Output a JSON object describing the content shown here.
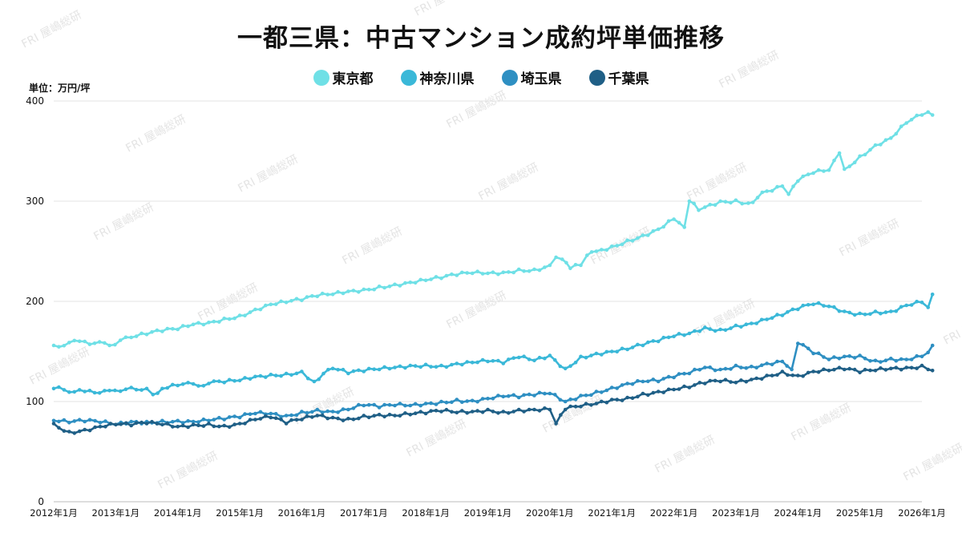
{
  "title": "一都三県：中古マンション成約坪単価推移",
  "unit_label": "単位：万円/坪",
  "watermark_text": "FRI 屋嶋総研",
  "chart_data": {
    "type": "line",
    "title": "一都三県：中古マンション成約坪単価推移",
    "xlabel": "",
    "ylabel": "単位：万円/坪",
    "ylim": [
      0,
      400
    ],
    "yticks": [
      0,
      100,
      200,
      300,
      400
    ],
    "xlim": [
      2012.0,
      2026.0
    ],
    "x_tick_labels": [
      "2012年1月",
      "2013年1月",
      "2014年1月",
      "2015年1月",
      "2016年1月",
      "2017年1月",
      "2018年1月",
      "2019年1月",
      "2020年1月",
      "2021年1月",
      "2022年1月",
      "2023年1月",
      "2024年1月",
      "2025年1月",
      "2026年1月"
    ],
    "grid": true,
    "legend_position": "top-center",
    "series": [
      {
        "name": "東京都",
        "color": "#6fe0e6",
        "points": [
          [
            2012.0,
            156
          ],
          [
            2012.5,
            160
          ],
          [
            2012.9,
            156
          ],
          [
            2013.25,
            164
          ],
          [
            2013.5,
            167
          ],
          [
            2013.75,
            170
          ],
          [
            2014.0,
            172
          ],
          [
            2014.25,
            177
          ],
          [
            2014.5,
            179
          ],
          [
            2014.75,
            183
          ],
          [
            2015.0,
            186
          ],
          [
            2015.25,
            192
          ],
          [
            2015.5,
            197
          ],
          [
            2015.75,
            199
          ],
          [
            2016.0,
            201
          ],
          [
            2016.25,
            205
          ],
          [
            2016.5,
            207
          ],
          [
            2016.75,
            210
          ],
          [
            2017.0,
            212
          ],
          [
            2017.25,
            215
          ],
          [
            2017.5,
            217
          ],
          [
            2017.75,
            219
          ],
          [
            2018.0,
            221
          ],
          [
            2018.25,
            223
          ],
          [
            2018.5,
            226
          ],
          [
            2018.75,
            228
          ],
          [
            2019.0,
            228
          ],
          [
            2019.25,
            229
          ],
          [
            2019.5,
            232
          ],
          [
            2019.75,
            232
          ],
          [
            2020.0,
            236
          ],
          [
            2020.1,
            244
          ],
          [
            2020.2,
            242
          ],
          [
            2020.33,
            233
          ],
          [
            2020.5,
            236
          ],
          [
            2020.6,
            246
          ],
          [
            2020.75,
            250
          ],
          [
            2021.0,
            255
          ],
          [
            2021.25,
            261
          ],
          [
            2021.5,
            266
          ],
          [
            2021.75,
            272
          ],
          [
            2022.0,
            282
          ],
          [
            2022.17,
            274
          ],
          [
            2022.25,
            300
          ],
          [
            2022.4,
            291
          ],
          [
            2022.5,
            294
          ],
          [
            2022.75,
            300
          ],
          [
            2023.0,
            301
          ],
          [
            2023.2,
            298
          ],
          [
            2023.5,
            310
          ],
          [
            2023.75,
            315
          ],
          [
            2023.85,
            307
          ],
          [
            2024.0,
            320
          ],
          [
            2024.25,
            328
          ],
          [
            2024.5,
            331
          ],
          [
            2024.67,
            348
          ],
          [
            2024.75,
            332
          ],
          [
            2025.0,
            345
          ],
          [
            2025.25,
            356
          ],
          [
            2025.5,
            363
          ],
          [
            2025.75,
            378
          ],
          [
            2026.0,
            386
          ],
          [
            2026.1,
            389
          ],
          [
            2026.17,
            386
          ]
        ]
      },
      {
        "name": "神奈川県",
        "color": "#3ab8d8",
        "points": [
          [
            2012.0,
            113
          ],
          [
            2012.5,
            110
          ],
          [
            2012.9,
            111
          ],
          [
            2013.25,
            114
          ],
          [
            2013.5,
            113
          ],
          [
            2013.6,
            107
          ],
          [
            2013.75,
            113
          ],
          [
            2014.0,
            116
          ],
          [
            2014.5,
            118
          ],
          [
            2014.75,
            119
          ],
          [
            2015.0,
            121
          ],
          [
            2015.25,
            125
          ],
          [
            2015.5,
            127
          ],
          [
            2015.75,
            128
          ],
          [
            2016.0,
            130
          ],
          [
            2016.2,
            120
          ],
          [
            2016.5,
            133
          ],
          [
            2016.75,
            128
          ],
          [
            2017.0,
            130
          ],
          [
            2017.25,
            132
          ],
          [
            2017.5,
            134
          ],
          [
            2017.75,
            136
          ],
          [
            2018.0,
            137
          ],
          [
            2018.25,
            136
          ],
          [
            2018.5,
            138
          ],
          [
            2018.75,
            139
          ],
          [
            2019.0,
            140
          ],
          [
            2019.25,
            138
          ],
          [
            2019.5,
            144
          ],
          [
            2019.75,
            141
          ],
          [
            2020.0,
            146
          ],
          [
            2020.25,
            133
          ],
          [
            2020.5,
            145
          ],
          [
            2020.75,
            148
          ],
          [
            2021.0,
            150
          ],
          [
            2021.25,
            152
          ],
          [
            2021.5,
            156
          ],
          [
            2021.75,
            160
          ],
          [
            2022.0,
            165
          ],
          [
            2022.25,
            168
          ],
          [
            2022.5,
            174
          ],
          [
            2022.75,
            172
          ],
          [
            2023.0,
            176
          ],
          [
            2023.25,
            178
          ],
          [
            2023.5,
            182
          ],
          [
            2023.75,
            186
          ],
          [
            2024.0,
            192
          ],
          [
            2024.25,
            197
          ],
          [
            2024.5,
            195
          ],
          [
            2024.75,
            190
          ],
          [
            2025.0,
            188
          ],
          [
            2025.25,
            190
          ],
          [
            2025.5,
            190
          ],
          [
            2025.75,
            196
          ],
          [
            2026.0,
            199
          ],
          [
            2026.1,
            194
          ],
          [
            2026.17,
            207
          ]
        ]
      },
      {
        "name": "埼玉県",
        "color": "#2e8fc2",
        "points": [
          [
            2012.0,
            81
          ],
          [
            2012.25,
            79
          ],
          [
            2012.5,
            80
          ],
          [
            2012.75,
            79
          ],
          [
            2013.0,
            77
          ],
          [
            2013.25,
            80
          ],
          [
            2013.5,
            80
          ],
          [
            2013.75,
            81
          ],
          [
            2014.0,
            81
          ],
          [
            2014.25,
            80
          ],
          [
            2014.5,
            81
          ],
          [
            2014.75,
            82
          ],
          [
            2015.0,
            84
          ],
          [
            2015.25,
            88
          ],
          [
            2015.5,
            88
          ],
          [
            2015.75,
            86
          ],
          [
            2016.0,
            90
          ],
          [
            2016.25,
            92
          ],
          [
            2016.5,
            90
          ],
          [
            2016.75,
            92
          ],
          [
            2017.0,
            96
          ],
          [
            2017.25,
            94
          ],
          [
            2017.5,
            96
          ],
          [
            2017.75,
            96
          ],
          [
            2018.0,
            98
          ],
          [
            2018.25,
            100
          ],
          [
            2018.5,
            102
          ],
          [
            2018.75,
            101
          ],
          [
            2019.0,
            103
          ],
          [
            2019.25,
            105
          ],
          [
            2019.5,
            104
          ],
          [
            2019.75,
            106
          ],
          [
            2020.0,
            108
          ],
          [
            2020.25,
            100
          ],
          [
            2020.5,
            106
          ],
          [
            2020.75,
            110
          ],
          [
            2021.0,
            114
          ],
          [
            2021.25,
            118
          ],
          [
            2021.5,
            120
          ],
          [
            2021.75,
            120
          ],
          [
            2022.0,
            124
          ],
          [
            2022.25,
            128
          ],
          [
            2022.5,
            134
          ],
          [
            2022.75,
            132
          ],
          [
            2023.0,
            136
          ],
          [
            2023.25,
            135
          ],
          [
            2023.5,
            138
          ],
          [
            2023.75,
            140
          ],
          [
            2023.9,
            132
          ],
          [
            2024.0,
            158
          ],
          [
            2024.25,
            148
          ],
          [
            2024.5,
            142
          ],
          [
            2024.75,
            145
          ],
          [
            2025.0,
            146
          ],
          [
            2025.25,
            141
          ],
          [
            2025.5,
            143
          ],
          [
            2025.75,
            142
          ],
          [
            2026.0,
            145
          ],
          [
            2026.1,
            149
          ],
          [
            2026.17,
            156
          ]
        ]
      },
      {
        "name": "千葉県",
        "color": "#1f5f86",
        "points": [
          [
            2012.0,
            78
          ],
          [
            2012.25,
            70
          ],
          [
            2012.5,
            72
          ],
          [
            2012.75,
            75
          ],
          [
            2013.0,
            77
          ],
          [
            2013.25,
            76
          ],
          [
            2013.5,
            78
          ],
          [
            2013.75,
            77
          ],
          [
            2014.0,
            75
          ],
          [
            2014.25,
            77
          ],
          [
            2014.5,
            78
          ],
          [
            2014.75,
            76
          ],
          [
            2015.0,
            78
          ],
          [
            2015.25,
            82
          ],
          [
            2015.5,
            84
          ],
          [
            2015.75,
            78
          ],
          [
            2016.0,
            82
          ],
          [
            2016.25,
            86
          ],
          [
            2016.5,
            84
          ],
          [
            2016.75,
            83
          ],
          [
            2017.0,
            86
          ],
          [
            2017.25,
            87
          ],
          [
            2017.5,
            86
          ],
          [
            2017.75,
            87
          ],
          [
            2018.0,
            88
          ],
          [
            2018.25,
            90
          ],
          [
            2018.5,
            89
          ],
          [
            2018.75,
            90
          ],
          [
            2019.0,
            92
          ],
          [
            2019.25,
            90
          ],
          [
            2019.5,
            92
          ],
          [
            2019.75,
            92
          ],
          [
            2020.0,
            92
          ],
          [
            2020.1,
            78
          ],
          [
            2020.25,
            92
          ],
          [
            2020.5,
            95
          ],
          [
            2020.75,
            98
          ],
          [
            2021.0,
            102
          ],
          [
            2021.25,
            104
          ],
          [
            2021.5,
            108
          ],
          [
            2021.75,
            110
          ],
          [
            2022.0,
            112
          ],
          [
            2022.25,
            114
          ],
          [
            2022.5,
            118
          ],
          [
            2022.75,
            120
          ],
          [
            2023.0,
            119
          ],
          [
            2023.25,
            122
          ],
          [
            2023.5,
            126
          ],
          [
            2023.75,
            130
          ],
          [
            2024.0,
            126
          ],
          [
            2024.25,
            130
          ],
          [
            2024.5,
            131
          ],
          [
            2024.75,
            132
          ],
          [
            2025.0,
            129
          ],
          [
            2025.25,
            131
          ],
          [
            2025.5,
            133
          ],
          [
            2025.75,
            134
          ],
          [
            2026.0,
            136
          ],
          [
            2026.1,
            132
          ],
          [
            2026.17,
            131
          ]
        ]
      }
    ]
  }
}
